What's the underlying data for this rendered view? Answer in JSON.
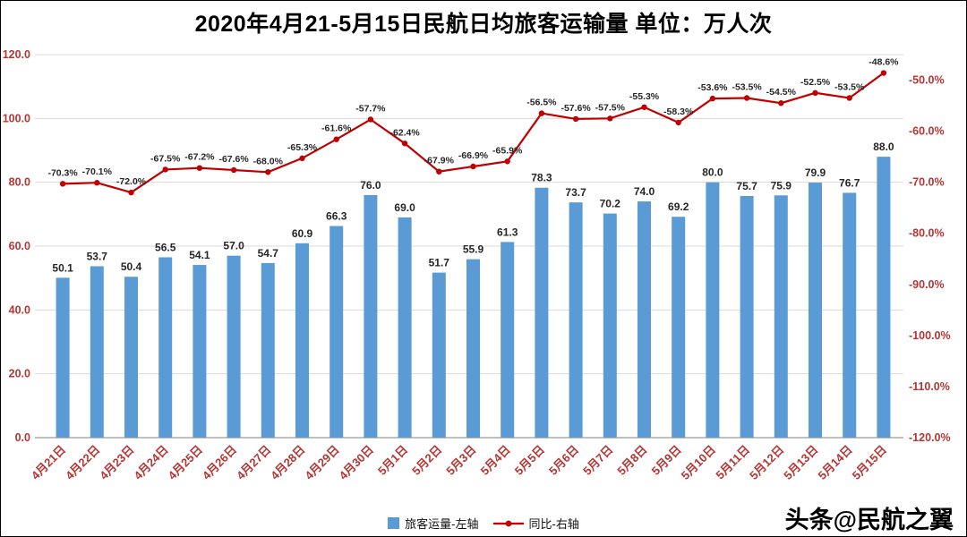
{
  "title": "2020年4月21-5月15日民航日均旅客运输量 单位：万人次",
  "watermark": "头条@民航之翼",
  "legend": {
    "bar_label": "旅客运量-左轴",
    "line_label": "同比-右轴"
  },
  "colors": {
    "bar": "#5B9BD5",
    "line": "#C00000",
    "axis_label": "#B63532",
    "grid": "#D9D9D9",
    "axis_line": "#808080",
    "data_label": "#262626"
  },
  "chart_data": {
    "type": "combo-bar-line",
    "title": "2020年4月21-5月15日民航日均旅客运输量 单位：万人次",
    "categories": [
      "4月21日",
      "4月22日",
      "4月23日",
      "4月24日",
      "4月25日",
      "4月26日",
      "4月27日",
      "4月28日",
      "4月29日",
      "4月30日",
      "5月1日",
      "5月2日",
      "5月3日",
      "5月4日",
      "5月5日",
      "5月6日",
      "5月7日",
      "5月8日",
      "5月9日",
      "5月10日",
      "5月11日",
      "5月12日",
      "5月13日",
      "5月14日",
      "5月15日"
    ],
    "series": [
      {
        "name": "旅客运量-左轴",
        "type": "bar",
        "axis": "left",
        "unit": "万人次",
        "values": [
          50.1,
          53.7,
          50.4,
          56.5,
          54.1,
          57.0,
          54.7,
          60.9,
          66.3,
          76.0,
          69.0,
          51.7,
          55.9,
          61.3,
          78.3,
          73.7,
          70.2,
          74.0,
          69.2,
          80.0,
          75.7,
          75.9,
          79.9,
          76.7,
          88.0
        ]
      },
      {
        "name": "同比-右轴",
        "type": "line",
        "axis": "right",
        "unit": "%",
        "values": [
          -70.3,
          -70.1,
          -72.0,
          -67.5,
          -67.2,
          -67.6,
          -68.0,
          -65.3,
          -61.6,
          -57.7,
          -62.4,
          -67.9,
          -66.9,
          -65.9,
          -56.5,
          -57.6,
          -57.5,
          -55.3,
          -58.3,
          -53.6,
          -53.5,
          -54.5,
          -52.5,
          -53.5,
          -48.6
        ]
      }
    ],
    "left_axis": {
      "min": 0,
      "max": 120,
      "ticks": [
        0,
        20,
        40,
        60,
        80,
        100,
        120
      ]
    },
    "right_axis": {
      "min": -120,
      "max": -45,
      "ticks": [
        -120,
        -110,
        -100,
        -90,
        -80,
        -70,
        -60,
        -50
      ]
    },
    "grid": true,
    "legend_position": "bottom"
  }
}
